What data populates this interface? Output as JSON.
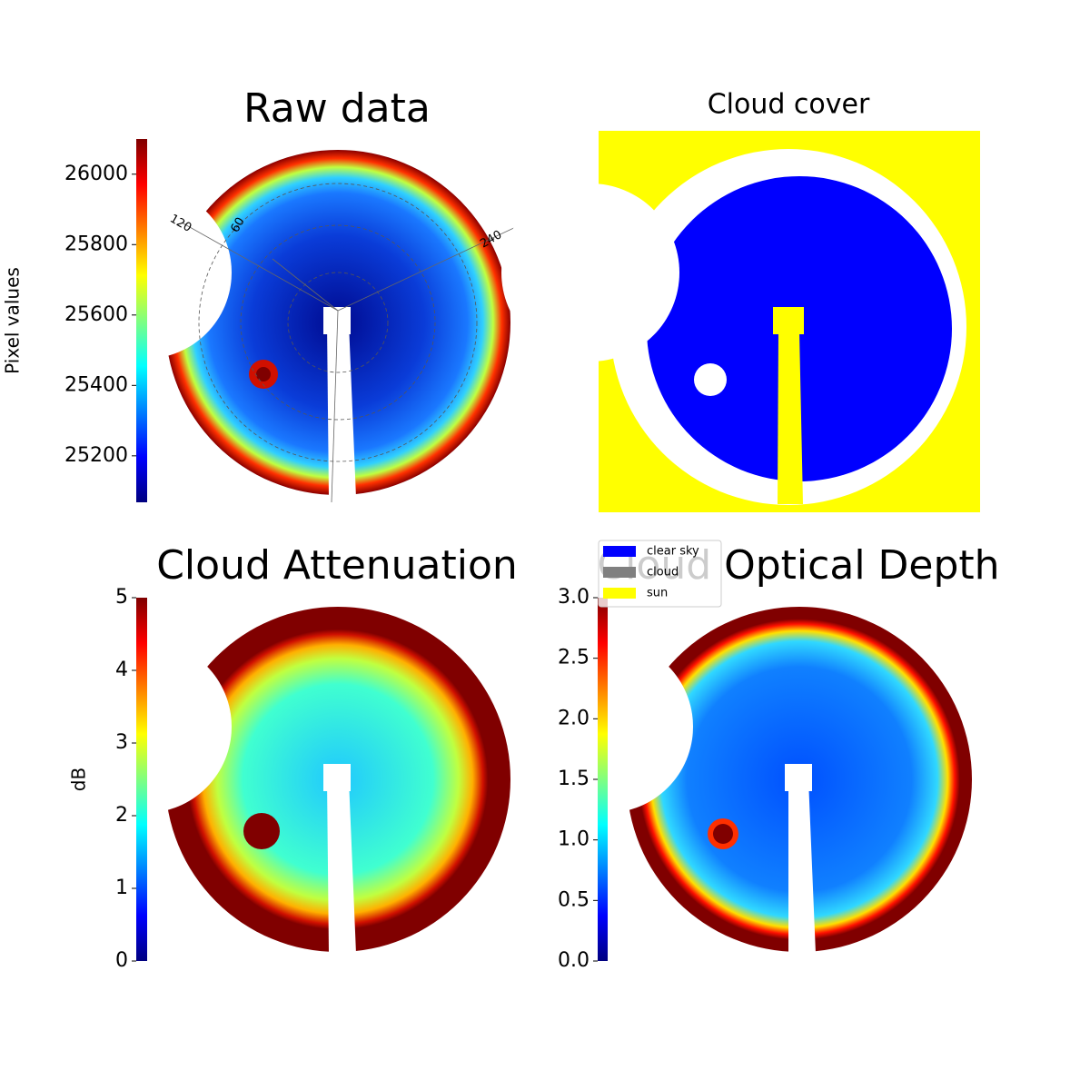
{
  "chart_data": [
    {
      "type": "colorbar-image",
      "title": "Raw data",
      "colorbar_label": "Pixel values",
      "ylim": [
        25068,
        26100
      ],
      "yticks": [
        25200,
        25400,
        25600,
        25800,
        26000
      ],
      "polar_labels": [
        "120",
        "60",
        "240"
      ]
    },
    {
      "type": "categorical-image",
      "title": "Cloud cover",
      "series": [
        {
          "name": "clear sky",
          "color": "#0000ff"
        },
        {
          "name": "cloud",
          "color": "#808080"
        },
        {
          "name": "sun",
          "color": "#ffff00"
        }
      ]
    },
    {
      "type": "colorbar-image",
      "title": "Cloud Attenuation",
      "colorbar_label": "dB",
      "ylim": [
        0,
        5
      ],
      "yticks": [
        0,
        1,
        2,
        3,
        4,
        5
      ]
    },
    {
      "type": "colorbar-image",
      "title": "Cloud Optical Depth",
      "ylim": [
        0,
        3
      ],
      "yticks": [
        {
          "value": 0,
          "label": "0.0"
        },
        0.5,
        {
          "value": 1,
          "label": "1.0"
        },
        1.5,
        {
          "value": 2,
          "label": "2.0"
        },
        2.5,
        {
          "value": 3,
          "label": "3.0"
        }
      ]
    }
  ]
}
